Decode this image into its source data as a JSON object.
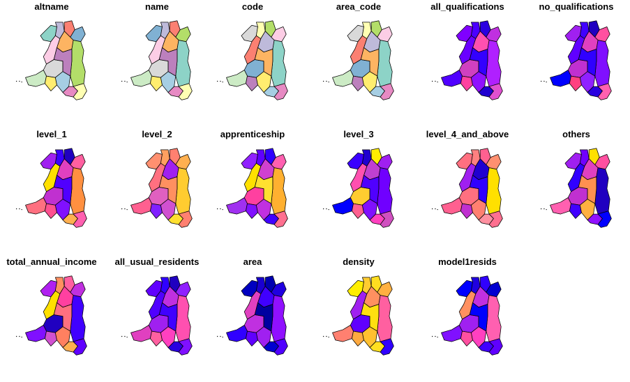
{
  "panels": [
    {
      "title": "altname",
      "palette": "qual-a"
    },
    {
      "title": "name",
      "palette": "qual-b"
    },
    {
      "title": "code",
      "palette": "qual-c"
    },
    {
      "title": "area_code",
      "palette": "qual-c"
    },
    {
      "title": "all_qualifications",
      "palette": "cont-a"
    },
    {
      "title": "no_qualifications",
      "palette": "cont-b"
    },
    {
      "title": "level_1",
      "palette": "cont-c"
    },
    {
      "title": "level_2",
      "palette": "cont-d"
    },
    {
      "title": "apprenticeship",
      "palette": "cont-e"
    },
    {
      "title": "level_3",
      "palette": "cont-f"
    },
    {
      "title": "level_4_and_above",
      "palette": "cont-g"
    },
    {
      "title": "others",
      "palette": "cont-h"
    },
    {
      "title": "total_annual_income",
      "palette": "cont-i"
    },
    {
      "title": "all_usual_residents",
      "palette": "cont-j"
    },
    {
      "title": "area",
      "palette": "cont-k"
    },
    {
      "title": "density",
      "palette": "cont-l"
    },
    {
      "title": "model1resids",
      "palette": "cont-m"
    }
  ],
  "colors": {
    "qual-a": [
      "#8dd3c7",
      "#bebada",
      "#fb8072",
      "#80b1d3",
      "#fdb462",
      "#b3de69",
      "#fccde5",
      "#d9d9d9",
      "#bc80bd",
      "#ccebc5",
      "#ffed6f",
      "#a6cee3",
      "#e78ac3",
      "#ffffb3"
    ],
    "qual-b": [
      "#80b1d3",
      "#bebada",
      "#fb8072",
      "#b3de69",
      "#fdb462",
      "#8dd3c7",
      "#fccde5",
      "#d9d9d9",
      "#bc80bd",
      "#ccebc5",
      "#ffed6f",
      "#a6cee3",
      "#e78ac3",
      "#ffffb3"
    ],
    "qual-c": [
      "#d9d9d9",
      "#ffffb3",
      "#b3de69",
      "#fccde5",
      "#bebada",
      "#8dd3c7",
      "#fb8072",
      "#80b1d3",
      "#fdb462",
      "#ccebc5",
      "#bc80bd",
      "#ffed6f",
      "#a6cee3",
      "#e78ac3"
    ],
    "cont-a": [
      "#8000ff",
      "#4b00ff",
      "#2a00e0",
      "#c030e0",
      "#ff50b0",
      "#b020ff",
      "#6a00ff",
      "#d040c0",
      "#3300ff",
      "#5000ff",
      "#ff40a0",
      "#9010ff",
      "#2000d0",
      "#e050d0"
    ],
    "cont-b": [
      "#a020f0",
      "#4000ff",
      "#2000c0",
      "#ff50a0",
      "#e040c0",
      "#8010ff",
      "#6000ff",
      "#c030d0",
      "#3000ff",
      "#0000ff",
      "#ff4080",
      "#9020ff",
      "#2a00e0",
      "#ff60b0"
    ],
    "cont-c": [
      "#a020f0",
      "#3a00ff",
      "#2000c0",
      "#ff60a0",
      "#e040c0",
      "#ff9040",
      "#ffe000",
      "#c030d0",
      "#5000ff",
      "#ff7080",
      "#ff5090",
      "#8010ff",
      "#ffb050",
      "#ff60b0"
    ],
    "cont-d": [
      "#ff9070",
      "#ffa060",
      "#ff8070",
      "#ffb050",
      "#a020f0",
      "#ffcc30",
      "#ff7080",
      "#e060c0",
      "#ff9060",
      "#ff6090",
      "#8020ff",
      "#d050d0",
      "#ffe030",
      "#ff8070"
    ],
    "cont-e": [
      "#9020ff",
      "#6000ff",
      "#3000ff",
      "#ff60b0",
      "#d040d0",
      "#ffb030",
      "#ffe000",
      "#ff40a0",
      "#ffe030",
      "#a030f0",
      "#8010ff",
      "#c030e0",
      "#4000ff",
      "#ff7090"
    ],
    "cont-f": [
      "#3a00ff",
      "#2000d0",
      "#ffee00",
      "#a020f0",
      "#c040d0",
      "#7000ff",
      "#ff50b0",
      "#ffcc30",
      "#5000ff",
      "#0000ff",
      "#ff6090",
      "#8010ff",
      "#ff40c0",
      "#d050c0"
    ],
    "cont-g": [
      "#ff7080",
      "#ff8080",
      "#ff6090",
      "#ff9070",
      "#2000d0",
      "#ffe000",
      "#a020f0",
      "#ff7080",
      "#3000ff",
      "#ff6090",
      "#c030d0",
      "#ff8070",
      "#ff90a0",
      "#ff7090"
    ],
    "cont-h": [
      "#a020f0",
      "#7000ff",
      "#ffe000",
      "#ff50a0",
      "#e040c0",
      "#2000c0",
      "#3000ff",
      "#c030d0",
      "#ff9050",
      "#ff60b0",
      "#4000ff",
      "#ffb040",
      "#9010ff",
      "#0000ff"
    ],
    "cont-i": [
      "#b020f0",
      "#ff9060",
      "#ff60a0",
      "#c030e0",
      "#ff40a0",
      "#4000ff",
      "#ffe000",
      "#2000c0",
      "#ff7080",
      "#8010ff",
      "#d050d0",
      "#ff8060",
      "#ffb050",
      "#6000ff"
    ],
    "cont-j": [
      "#6000ff",
      "#3000ff",
      "#2000c0",
      "#9020ff",
      "#c030e0",
      "#ff50b0",
      "#5000ff",
      "#a020f0",
      "#4000ff",
      "#e040c0",
      "#ff60a0",
      "#ff40c0",
      "#2a00e0",
      "#8010ff"
    ],
    "cont-k": [
      "#0000c0",
      "#1a00d0",
      "#0000b0",
      "#2000e0",
      "#4000ff",
      "#9010ff",
      "#e040c0",
      "#c030e0",
      "#0000a0",
      "#3000ff",
      "#6000ff",
      "#a020f0",
      "#0000d0",
      "#5000ff"
    ],
    "cont-l": [
      "#ffee00",
      "#ffcc30",
      "#ffdd20",
      "#ffb040",
      "#ff9060",
      "#ff60a0",
      "#a020f0",
      "#6000ff",
      "#ffe010",
      "#ff8070",
      "#ffaa40",
      "#ffc030",
      "#ffe020",
      "#3000ff"
    ],
    "cont-m": [
      "#0000ff",
      "#2000e0",
      "#3000ff",
      "#0000d0",
      "#c030e0",
      "#ff60b0",
      "#ff9060",
      "#a020f0",
      "#0000ff",
      "#8010ff",
      "#ff50a0",
      "#ff40c0",
      "#4000ff",
      "#6000ff"
    ]
  }
}
